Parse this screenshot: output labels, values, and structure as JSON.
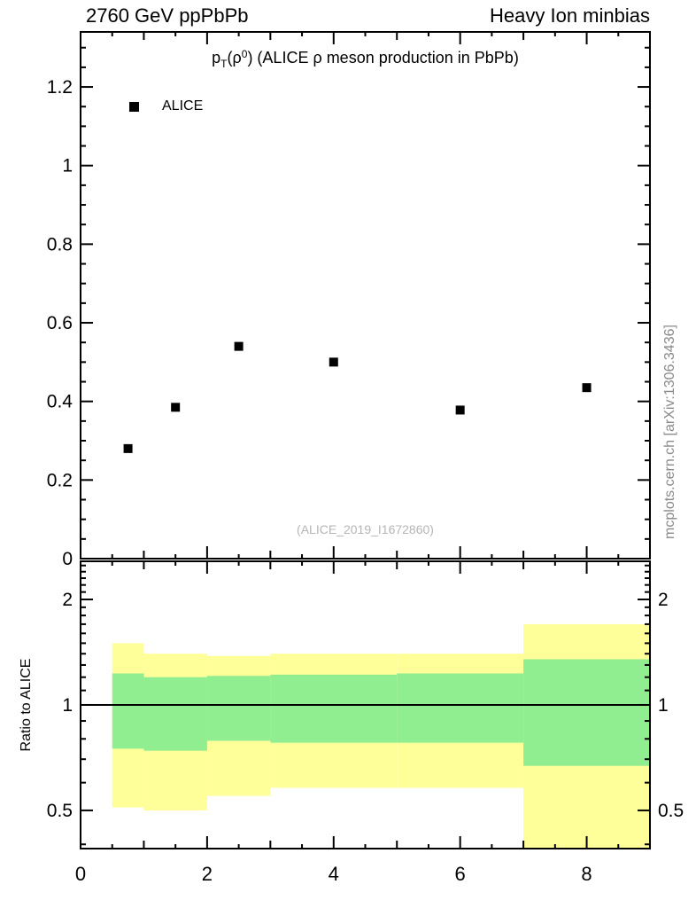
{
  "header": {
    "left": "2760 GeV ppPbPb",
    "right": "Heavy Ion minbias"
  },
  "main_panel": {
    "title": {
      "base": "p",
      "sub": "T",
      "mid": "(ρ",
      "sup": "0",
      "rest": ") (ALICE ρ meson production in PbPb)"
    },
    "legend": {
      "marker": "filled-square",
      "label": "ALICE"
    },
    "watermark": "(ALICE_2019_I1672860)"
  },
  "ratio_panel": {
    "ylabel": "Ratio to ALICE"
  },
  "side_note": "mcplots.cern.ch [arXiv:1306.3436]",
  "chart_data": [
    {
      "type": "scatter",
      "panel": "main",
      "title": "pT(ρ0) (ALICE ρ meson production in PbPb)",
      "series": [
        {
          "name": "ALICE",
          "marker": "square",
          "color": "#000000",
          "x": [
            0.75,
            1.5,
            2.5,
            4,
            6,
            8
          ],
          "y": [
            0.28,
            0.385,
            0.54,
            0.5,
            0.378,
            0.435
          ]
        }
      ],
      "xlim": [
        0,
        9
      ],
      "ylim": [
        0,
        1.34
      ],
      "yticks": [
        0,
        0.2,
        0.4,
        0.6,
        0.8,
        1,
        1.2
      ],
      "ytick_labels": [
        "0",
        "0.2",
        "0.4",
        "0.6",
        "0.8",
        "1",
        "1.2"
      ],
      "grid": false,
      "legend_position": "top-left",
      "watermark": "(ALICE_2019_I1672860)"
    },
    {
      "type": "band-steps",
      "panel": "ratio",
      "ylabel": "Ratio to ALICE",
      "yscale": "log",
      "xlim": [
        0,
        9
      ],
      "ylim": [
        0.389,
        2.57
      ],
      "yticks": [
        0.5,
        1,
        2
      ],
      "ytick_labels": [
        "0.5",
        "1",
        "2"
      ],
      "xticks": [
        0,
        2,
        4,
        6,
        8
      ],
      "xtick_labels": [
        "0",
        "2",
        "4",
        "6",
        "8"
      ],
      "reference_line": 1,
      "bands": [
        {
          "name": "outer-uncertainty-band",
          "color": "#ffff99",
          "edges": [
            0.5,
            1,
            2,
            3,
            5,
            7,
            9
          ],
          "lo": [
            0.51,
            0.5,
            0.55,
            0.58,
            0.58,
            0.35
          ],
          "hi": [
            1.5,
            1.4,
            1.38,
            1.4,
            1.4,
            1.7
          ]
        },
        {
          "name": "inner-uncertainty-band",
          "color": "#90ee90",
          "edges": [
            0.5,
            1,
            2,
            3,
            5,
            7,
            9
          ],
          "lo": [
            0.75,
            0.74,
            0.79,
            0.78,
            0.78,
            0.67
          ],
          "hi": [
            1.23,
            1.2,
            1.21,
            1.22,
            1.23,
            1.35
          ]
        }
      ]
    }
  ]
}
